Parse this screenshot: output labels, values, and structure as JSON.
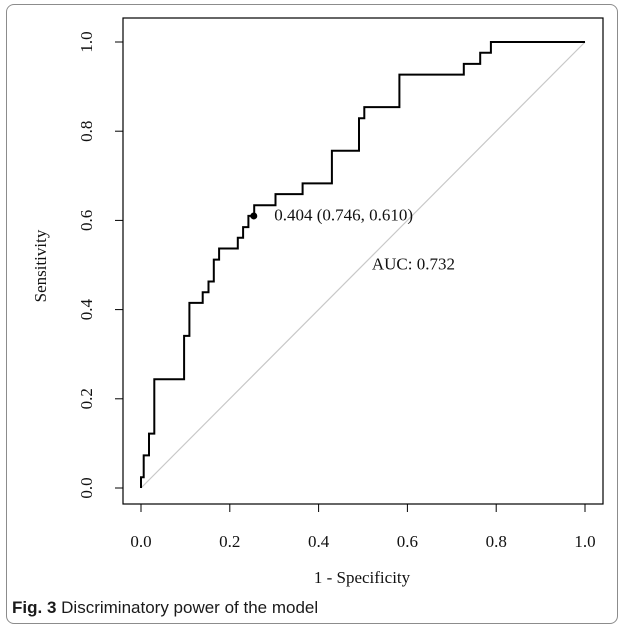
{
  "figure": {
    "caption_label": "Fig. 3",
    "caption_text": "Discriminatory power of the model"
  },
  "chart_data": {
    "type": "line",
    "xlabel": "1 - Specificity",
    "ylabel": "Sensitivity",
    "xlim": [
      0,
      1
    ],
    "ylim": [
      0,
      1
    ],
    "x_ticks": [
      "0.0",
      "0.2",
      "0.4",
      "0.6",
      "0.8",
      "1.0"
    ],
    "y_ticks": [
      "0.0",
      "0.2",
      "0.4",
      "0.6",
      "0.8",
      "1.0"
    ],
    "grid": false,
    "legend": "none",
    "series": [
      {
        "line_style": "step",
        "color": "#000000",
        "x": [
          0.0,
          0.0,
          0.006,
          0.006,
          0.018,
          0.018,
          0.03,
          0.03,
          0.043,
          0.043,
          0.097,
          0.097,
          0.109,
          0.109,
          0.139,
          0.139,
          0.152,
          0.152,
          0.164,
          0.164,
          0.176,
          0.176,
          0.188,
          0.188,
          0.218,
          0.218,
          0.23,
          0.23,
          0.242,
          0.242,
          0.255,
          0.255,
          0.303,
          0.303,
          0.364,
          0.364,
          0.376,
          0.376,
          0.43,
          0.43,
          0.491,
          0.491,
          0.503,
          0.503,
          0.582,
          0.582,
          0.727,
          0.727,
          0.764,
          0.764,
          0.788,
          0.788,
          1.0
        ],
        "y": [
          0.0,
          0.024,
          0.024,
          0.073,
          0.073,
          0.122,
          0.122,
          0.244,
          0.244,
          0.244,
          0.244,
          0.341,
          0.341,
          0.415,
          0.415,
          0.439,
          0.439,
          0.463,
          0.463,
          0.512,
          0.512,
          0.537,
          0.537,
          0.537,
          0.537,
          0.561,
          0.561,
          0.585,
          0.585,
          0.61,
          0.61,
          0.634,
          0.634,
          0.659,
          0.659,
          0.683,
          0.683,
          0.683,
          0.683,
          0.756,
          0.756,
          0.829,
          0.829,
          0.854,
          0.854,
          0.927,
          0.927,
          0.951,
          0.951,
          0.976,
          0.976,
          1.0,
          1.0
        ]
      }
    ],
    "reference_line": {
      "x": [
        0,
        1
      ],
      "y": [
        0,
        1
      ],
      "color": "#c8c8c8"
    },
    "best_point": {
      "x": 0.254,
      "y": 0.61
    },
    "annotations": {
      "threshold": "0.404 (0.746, 0.610)",
      "auc": "AUC: 0.732"
    },
    "annotation_positions": {
      "threshold": {
        "x": 0.3,
        "y": 0.6
      },
      "auc": {
        "x": 0.52,
        "y": 0.49
      }
    }
  }
}
